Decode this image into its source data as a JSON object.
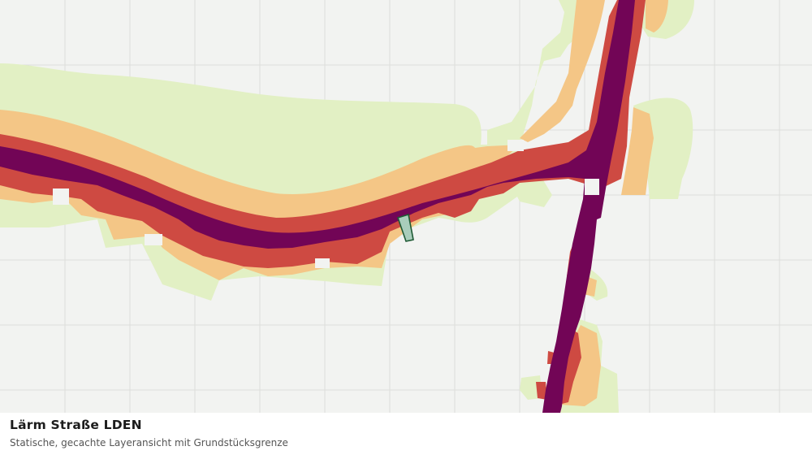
{
  "caption": {
    "title": "Lärm Straße LDEN",
    "subtitle": "Statische, gecachte Layeransicht mit Grundstücksgrenze"
  },
  "map": {
    "layer": "noise-road-lden",
    "colors": {
      "background": "#f2f3f1",
      "grid": "#dcdedb",
      "band_low": "#e2f0c4",
      "band_mid": "#f4c686",
      "band_high": "#ce4a42",
      "band_max": "#720556",
      "parcel_fill": "#a9cdbb",
      "parcel_stroke": "#1e5a34"
    }
  }
}
